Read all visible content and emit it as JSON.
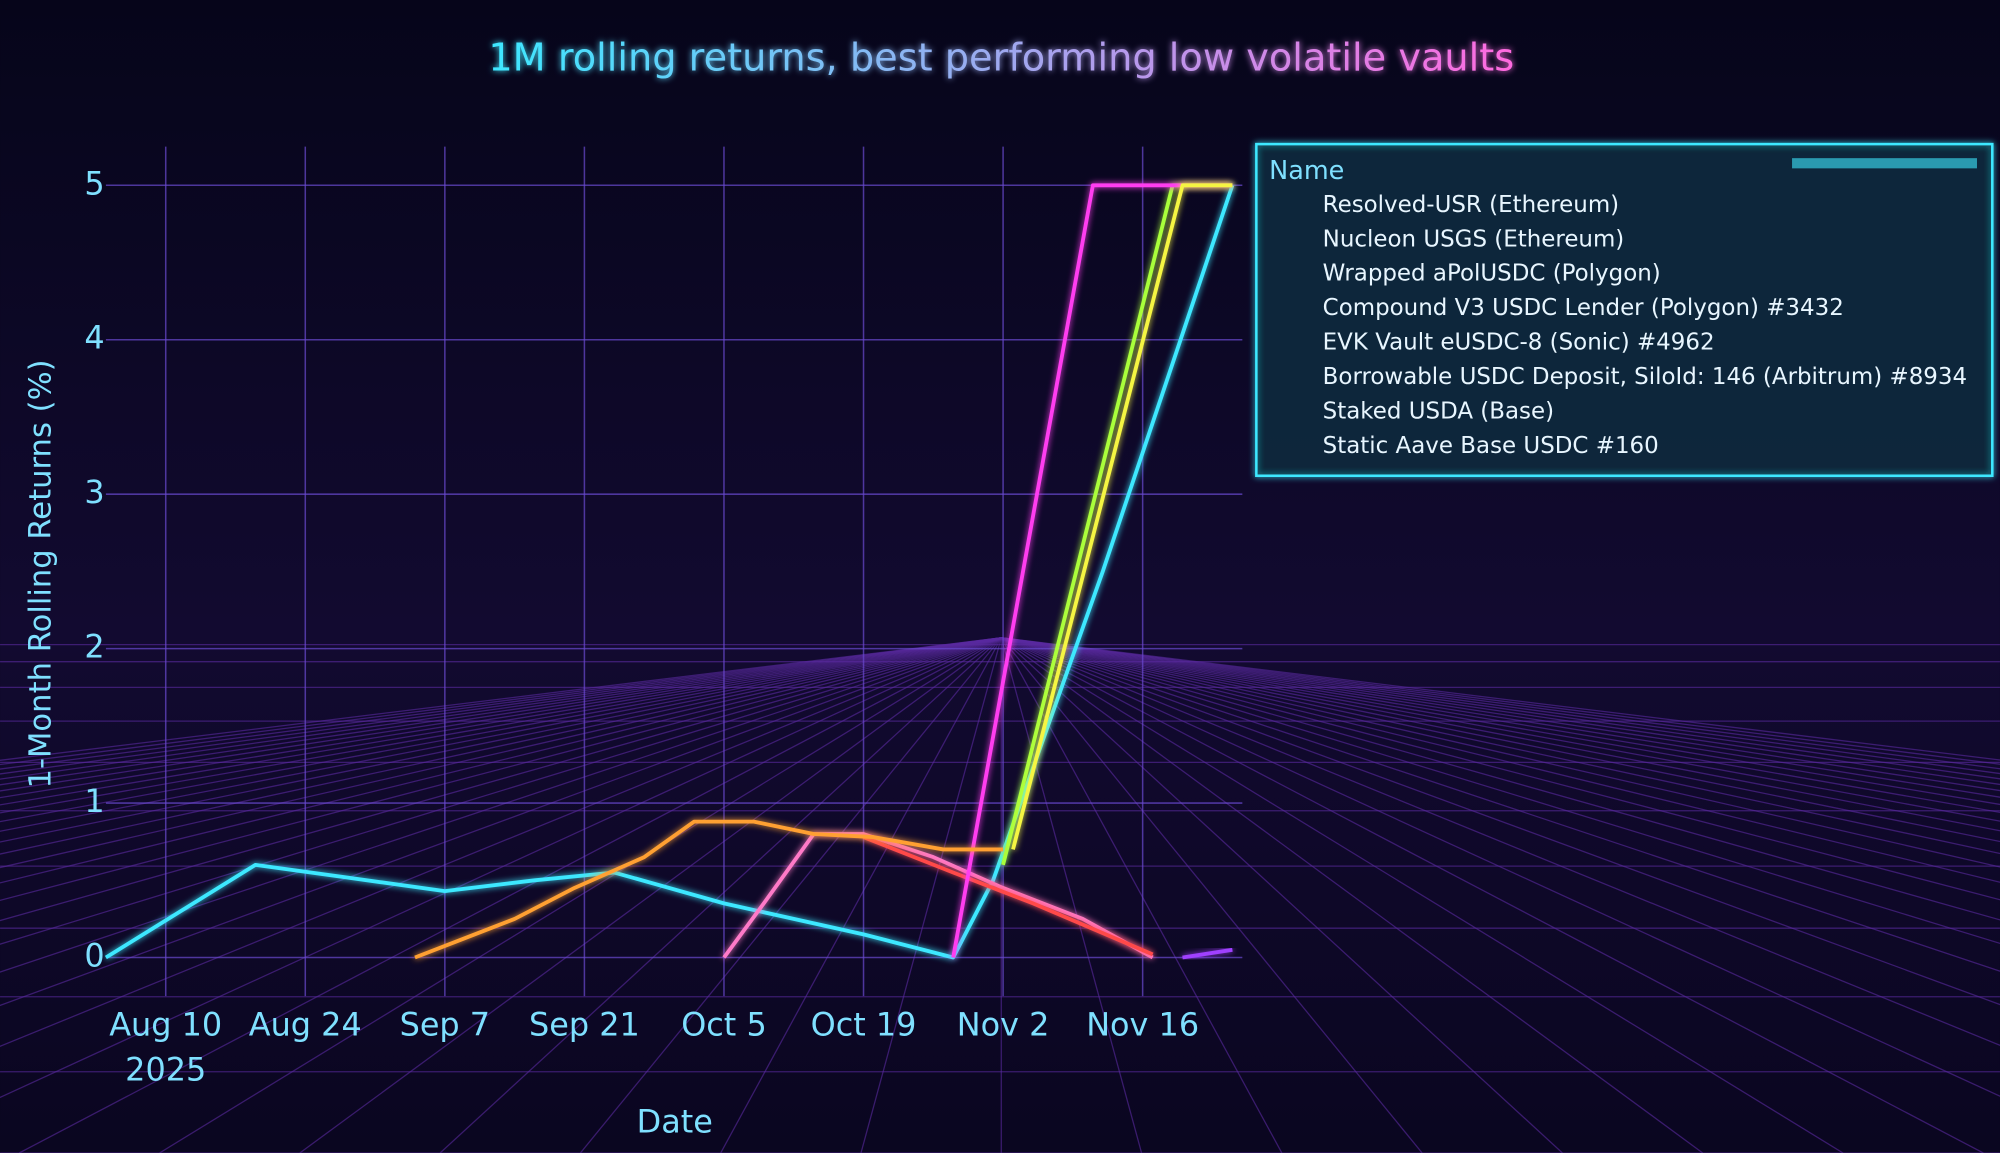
{
  "chart_data": {
    "type": "line",
    "title": "1M rolling returns, best performing low volatile vaults",
    "x_label": "Date",
    "y_label": "1-Month Rolling Returns (%)",
    "legend_title": "Name",
    "legend_position": "upper right",
    "grid": true,
    "xlim": [
      "2025-08-04",
      "2025-11-26"
    ],
    "xticks": [
      {
        "value": "2025-08-10",
        "label": "Aug 10\n2025"
      },
      {
        "value": "2025-08-24",
        "label": "Aug 24"
      },
      {
        "value": "2025-09-07",
        "label": "Sep 7"
      },
      {
        "value": "2025-09-21",
        "label": "Sep 21"
      },
      {
        "value": "2025-10-05",
        "label": "Oct 5"
      },
      {
        "value": "2025-10-19",
        "label": "Oct 19"
      },
      {
        "value": "2025-11-02",
        "label": "Nov 2"
      },
      {
        "value": "2025-11-16",
        "label": "Nov 16"
      }
    ],
    "ylim": [
      -0.25,
      5.25
    ],
    "yticks": [
      0,
      1,
      2,
      3,
      4,
      5
    ],
    "series": [
      {
        "name": "Resolved-USR (Ethereum)",
        "color": "#3de8ff",
        "x": [
          "2025-08-04",
          "2025-08-19",
          "2025-08-28",
          "2025-09-07",
          "2025-09-16",
          "2025-09-24",
          "2025-10-05",
          "2025-10-19",
          "2025-10-28",
          "2025-11-01",
          "2025-11-12",
          "2025-11-25"
        ],
        "values": [
          0,
          0.6,
          0.52,
          0.43,
          0.5,
          0.55,
          0.35,
          0.15,
          0,
          0.5,
          2.5,
          5
        ]
      },
      {
        "name": "Nucleon USGS (Ethereum)",
        "color": "#ff7ac8",
        "x": [
          "2025-10-05",
          "2025-10-09",
          "2025-10-14",
          "2025-10-19",
          "2025-10-26",
          "2025-11-02",
          "2025-11-10",
          "2025-11-17"
        ],
        "values": [
          0,
          0.35,
          0.8,
          0.8,
          0.65,
          0.45,
          0.25,
          0
        ]
      },
      {
        "name": "Wrapped aPolUSDC (Polygon)",
        "color": "#a8ff3a",
        "x": [
          "2025-11-02",
          "2025-11-19",
          "2025-11-25"
        ],
        "values": [
          0.6,
          5,
          5
        ]
      },
      {
        "name": "Compound V3 USDC Lender (Polygon) #3432",
        "color": "#ff4a4a",
        "x": [
          "2025-10-19",
          "2025-10-28",
          "2025-11-05",
          "2025-11-17"
        ],
        "values": [
          0.78,
          0.55,
          0.35,
          0.02
        ]
      },
      {
        "name": "EVK Vault eUSDC-8 (Sonic) #4962",
        "color": "#ff3df0",
        "x": [
          "2025-10-28",
          "2025-11-11",
          "2025-11-25"
        ],
        "values": [
          0,
          5,
          5
        ]
      },
      {
        "name": "Borrowable USDC Deposit, SiloId: 146 (Arbitrum) #8934",
        "color": "#ffa030",
        "x": [
          "2025-09-04",
          "2025-09-08",
          "2025-09-14",
          "2025-09-20",
          "2025-09-27",
          "2025-10-02",
          "2025-10-08",
          "2025-10-14",
          "2025-10-20",
          "2025-10-27",
          "2025-11-02"
        ],
        "values": [
          0,
          0.1,
          0.25,
          0.45,
          0.65,
          0.88,
          0.88,
          0.8,
          0.78,
          0.7,
          0.7
        ]
      },
      {
        "name": "Staked USDA (Base)",
        "color": "#f5f542",
        "x": [
          "2025-11-03",
          "2025-11-20",
          "2025-11-25"
        ],
        "values": [
          0.7,
          5,
          5
        ]
      },
      {
        "name": "Static Aave Base USDC #160",
        "color": "#a040ff",
        "x": [
          "2025-11-20",
          "2025-11-25"
        ],
        "values": [
          0,
          0.05
        ]
      }
    ]
  }
}
